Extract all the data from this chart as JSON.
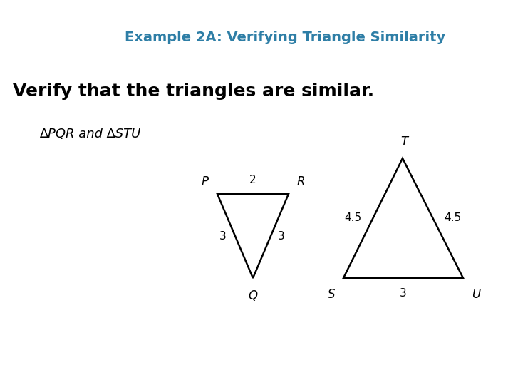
{
  "title": "Example 2A: Verifying Triangle Similarity",
  "title_color": "#2E7EA6",
  "title_fontsize": 14,
  "subtitle": "Verify that the triangles are similar.",
  "subtitle_fontsize": 18,
  "label_line": "∆PQR and ∆STU",
  "label_fontsize": 13,
  "bg_color": "#ffffff",
  "tri1": {
    "P": [
      0.0,
      1.0
    ],
    "R": [
      1.0,
      1.0
    ],
    "Q": [
      0.5,
      0.0
    ],
    "label_P": "P",
    "label_R": "R",
    "label_Q": "Q",
    "side_PR": "2",
    "side_PQ": "3",
    "side_RQ": "3"
  },
  "tri2": {
    "T": [
      2.25,
      2.25
    ],
    "S": [
      1.5,
      0.0
    ],
    "U": [
      3.0,
      0.0
    ],
    "label_T": "T",
    "label_S": "S",
    "label_U": "U",
    "side_TS": "4.5",
    "side_TU": "4.5",
    "side_SU": "3"
  }
}
